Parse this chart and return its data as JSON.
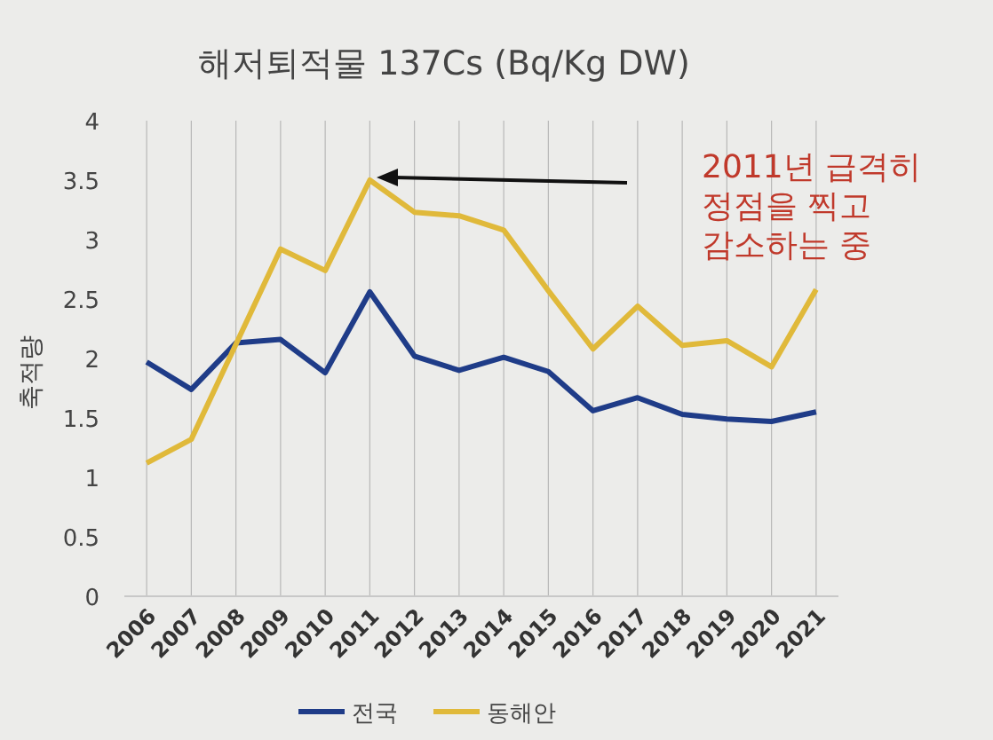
{
  "chart_data": {
    "type": "line",
    "title": "해저퇴적물 137Cs (Bq/Kg DW)",
    "ylabel": "축적량",
    "categories": [
      "2006",
      "2007",
      "2008",
      "2009",
      "2010",
      "2011",
      "2012",
      "2013",
      "2014",
      "2015",
      "2016",
      "2017",
      "2018",
      "2019",
      "2020",
      "2021"
    ],
    "series": [
      {
        "name": "전국",
        "color": "#1f3c88",
        "values": [
          1.97,
          1.74,
          2.13,
          2.16,
          1.88,
          2.56,
          2.02,
          1.9,
          2.01,
          1.89,
          1.56,
          1.67,
          1.53,
          1.49,
          1.47,
          1.55
        ]
      },
      {
        "name": "동해안",
        "color": "#e0b93a",
        "values": [
          1.12,
          1.32,
          2.12,
          2.92,
          2.74,
          3.5,
          3.23,
          3.2,
          3.08,
          2.57,
          2.08,
          2.44,
          2.11,
          2.15,
          1.93,
          2.58
        ]
      }
    ],
    "ylim": [
      0,
      4
    ],
    "yticks": [
      0,
      0.5,
      1,
      1.5,
      2,
      2.5,
      3,
      3.5,
      4
    ],
    "grid": "x",
    "legend": "bottom",
    "annotations": [
      "2011년 급격히\n정점을 찍고\n감소하는 중"
    ]
  }
}
